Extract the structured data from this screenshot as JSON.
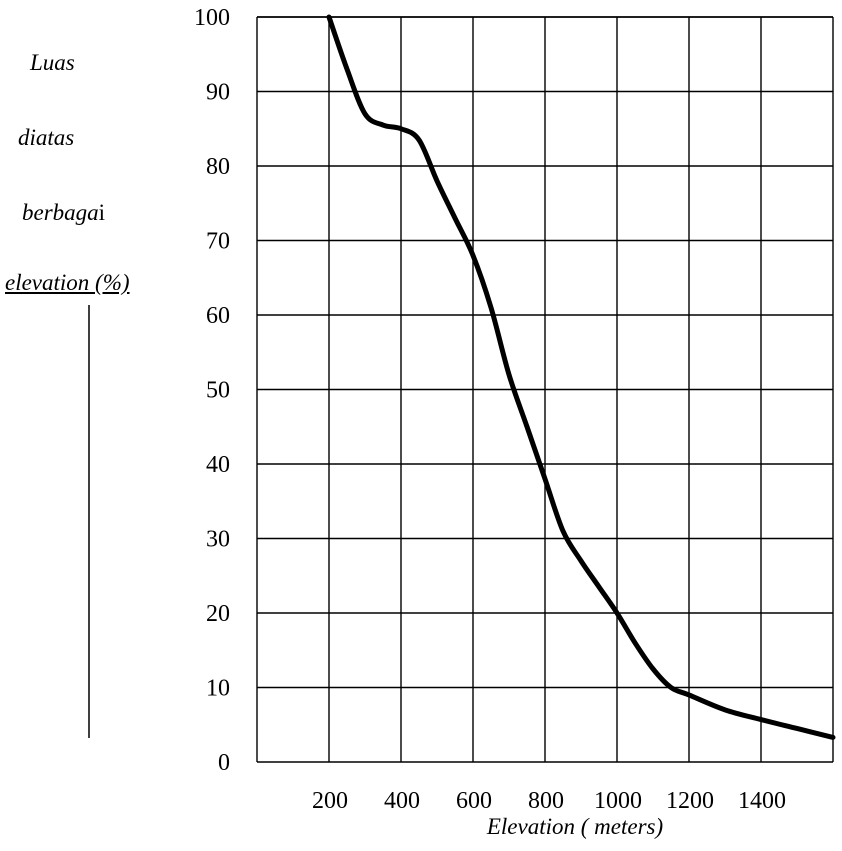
{
  "chart_data": {
    "type": "line",
    "title": "",
    "xlabel": "Elevation ( meters)",
    "ylabel_lines": [
      "Luas",
      "diatas",
      "berbaga",
      "elevation (%)"
    ],
    "ylabel_plain_suffix": "i",
    "x_ticks": [
      "200",
      "400",
      "600",
      "800",
      "1000",
      "1200",
      "1400"
    ],
    "y_ticks": [
      "0",
      "10",
      "20",
      "30",
      "40",
      "50",
      "60",
      "70",
      "80",
      "90",
      "100"
    ],
    "xlim": [
      0,
      1600
    ],
    "ylim": [
      0,
      100
    ],
    "grid": true,
    "line_color": "#000000",
    "series": [
      {
        "x": [
          200,
          250,
          300,
          350,
          400,
          450,
          500,
          550,
          600,
          650,
          700,
          750,
          800,
          850,
          900,
          950,
          1000,
          1050,
          1100,
          1150,
          1200,
          1300,
          1400,
          1500,
          1600
        ],
        "y": [
          100,
          93,
          87,
          85.5,
          85,
          83.5,
          78,
          73,
          68,
          61,
          52,
          45,
          38,
          31,
          27,
          23.5,
          20,
          16,
          12.5,
          10,
          9,
          7,
          5.7,
          4.5,
          3.3
        ]
      }
    ]
  }
}
